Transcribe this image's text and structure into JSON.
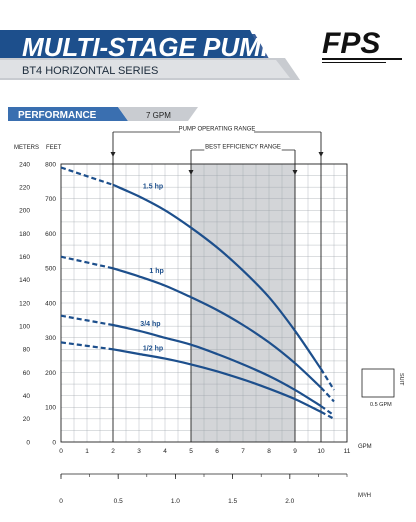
{
  "header": {
    "title": "MULTI-STAGE PUMPS",
    "subtitle": "BT4 HORIZONTAL SERIES",
    "logo": "FPS"
  },
  "section": {
    "label": "PERFORMANCE",
    "flow": "7 GPM"
  },
  "chart_data": {
    "type": "line",
    "title": "",
    "x_axis": {
      "label": "GPM",
      "range": [
        0,
        11
      ],
      "ticks": [
        "0",
        "1",
        "2",
        "3",
        "4",
        "5",
        "6",
        "7",
        "8",
        "9",
        "10",
        "11"
      ]
    },
    "x2_axis": {
      "label": "M³/H",
      "ticks": [
        "0",
        "0.5",
        "1.0",
        "1.5",
        "2.0"
      ],
      "tick_values_gpm": [
        0,
        2.2,
        4.4,
        6.6,
        8.8
      ]
    },
    "y_axis_left": {
      "label": "METERS",
      "range": [
        0,
        240
      ],
      "ticks": [
        "0",
        "20",
        "40",
        "60",
        "80",
        "100",
        "120",
        "140",
        "160",
        "180",
        "200",
        "220",
        "240"
      ]
    },
    "y_axis_right": {
      "label": "FEET",
      "range": [
        0,
        800
      ],
      "ticks": [
        "0",
        "100",
        "200",
        "300",
        "400",
        "500",
        "600",
        "700",
        "800"
      ]
    },
    "grid": true,
    "operating_range": {
      "label": "PUMP OPERATING RANGE",
      "x": [
        2,
        10
      ]
    },
    "best_efficiency_range": {
      "label": "BEST EFFICIENCY RANGE",
      "x": [
        5,
        9
      ]
    },
    "series": [
      {
        "name": "1.5 hp",
        "x": [
          0,
          2,
          3,
          4,
          5,
          6,
          7,
          8,
          9,
          10,
          10.5
        ],
        "y": [
          237,
          222,
          212,
          200,
          185,
          168,
          148,
          125,
          96,
          63,
          45
        ]
      },
      {
        "name": "1 hp",
        "x": [
          0,
          2,
          3,
          4,
          5,
          6,
          7,
          8,
          9,
          10,
          10.5
        ],
        "y": [
          160,
          150,
          143,
          135,
          125,
          114,
          101,
          86,
          68,
          47,
          35
        ]
      },
      {
        "name": "3/4 hp",
        "x": [
          0,
          2,
          3,
          4,
          5,
          6,
          7,
          8,
          9,
          10,
          10.5
        ],
        "y": [
          109,
          101,
          96,
          90,
          84,
          76,
          67,
          57,
          45,
          31,
          23
        ]
      },
      {
        "name": "1/2 hp",
        "x": [
          0,
          2,
          3,
          4,
          5,
          6,
          7,
          8,
          9,
          10,
          10.5
        ],
        "y": [
          86,
          80,
          76,
          72,
          67,
          61,
          54,
          46,
          37,
          26,
          20
        ]
      }
    ],
    "inset": {
      "label": "SUIT",
      "sublabel": "0.5 GPM"
    }
  }
}
